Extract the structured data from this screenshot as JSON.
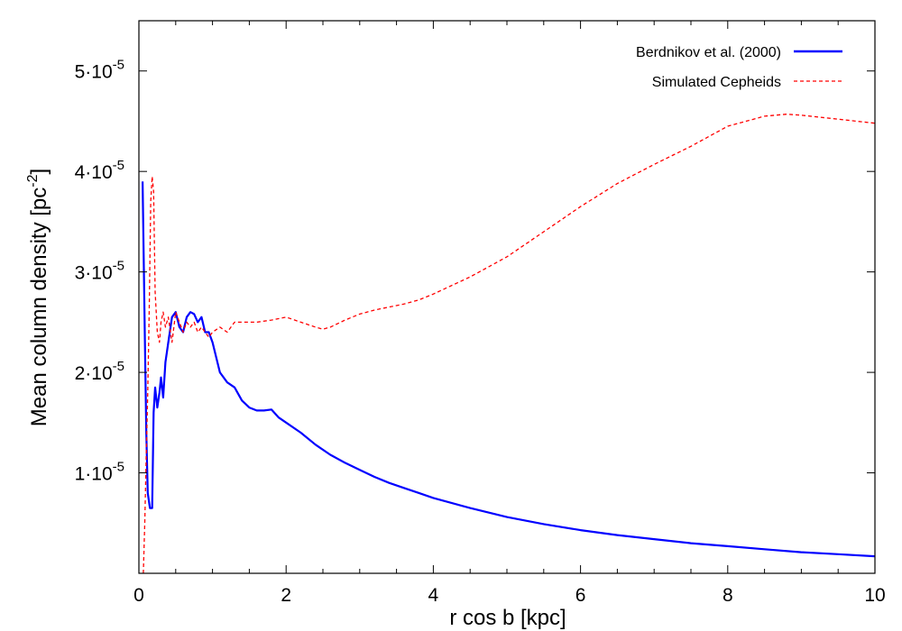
{
  "chart_data": {
    "type": "line",
    "xlabel": "r cos b [kpc]",
    "ylabel_main": "Mean column density [pc",
    "ylabel_sup": "-2",
    "ylabel_end": "]",
    "xlim": [
      0,
      10
    ],
    "ylim": [
      0,
      5.5e-05
    ],
    "grid": false,
    "legend_position": "top-right",
    "x_ticks": [
      {
        "value": 0,
        "label": "0"
      },
      {
        "value": 2,
        "label": "2"
      },
      {
        "value": 4,
        "label": "4"
      },
      {
        "value": 6,
        "label": "6"
      },
      {
        "value": 8,
        "label": "8"
      },
      {
        "value": 10,
        "label": "10"
      }
    ],
    "y_ticks": [
      {
        "value": 1e-05,
        "mant": "1·10",
        "exp": "-5"
      },
      {
        "value": 2e-05,
        "mant": "2·10",
        "exp": "-5"
      },
      {
        "value": 3e-05,
        "mant": "3·10",
        "exp": "-5"
      },
      {
        "value": 4e-05,
        "mant": "4·10",
        "exp": "-5"
      },
      {
        "value": 5e-05,
        "mant": "5·10",
        "exp": "-5"
      }
    ],
    "series": [
      {
        "name": "Berdnikov et al. (2000)",
        "color": "#0000ff",
        "style": "solid",
        "x": [
          0.05,
          0.08,
          0.1,
          0.12,
          0.15,
          0.18,
          0.2,
          0.22,
          0.25,
          0.28,
          0.3,
          0.33,
          0.36,
          0.4,
          0.45,
          0.5,
          0.55,
          0.6,
          0.65,
          0.7,
          0.75,
          0.8,
          0.85,
          0.9,
          0.95,
          1.0,
          1.1,
          1.2,
          1.3,
          1.4,
          1.5,
          1.6,
          1.7,
          1.8,
          1.9,
          2.0,
          2.2,
          2.4,
          2.6,
          2.8,
          3.0,
          3.2,
          3.4,
          3.6,
          3.8,
          4.0,
          4.5,
          5.0,
          5.5,
          6.0,
          6.5,
          7.0,
          7.5,
          8.0,
          8.5,
          9.0,
          9.5,
          10.0
        ],
        "y": [
          3.9e-05,
          2.4e-05,
          1.4e-05,
          8e-06,
          6.5e-06,
          6.5e-06,
          1.6e-05,
          1.85e-05,
          1.65e-05,
          1.8e-05,
          1.95e-05,
          1.75e-05,
          2.1e-05,
          2.3e-05,
          2.55e-05,
          2.6e-05,
          2.45e-05,
          2.4e-05,
          2.55e-05,
          2.6e-05,
          2.58e-05,
          2.5e-05,
          2.55e-05,
          2.4e-05,
          2.4e-05,
          2.3e-05,
          2e-05,
          1.9e-05,
          1.85e-05,
          1.72e-05,
          1.65e-05,
          1.62e-05,
          1.62e-05,
          1.63e-05,
          1.55e-05,
          1.5e-05,
          1.4e-05,
          1.28e-05,
          1.18e-05,
          1.1e-05,
          1.03e-05,
          9.6e-06,
          9e-06,
          8.5e-06,
          8e-06,
          7.5e-06,
          6.5e-06,
          5.6e-06,
          4.9e-06,
          4.3e-06,
          3.8e-06,
          3.4e-06,
          3e-06,
          2.7e-06,
          2.4e-06,
          2.1e-06,
          1.9e-06,
          1.7e-06
        ]
      },
      {
        "name": "Simulated Cepheids",
        "color": "#ff0000",
        "style": "dashed",
        "x": [
          0.06,
          0.08,
          0.1,
          0.12,
          0.14,
          0.16,
          0.18,
          0.2,
          0.22,
          0.25,
          0.28,
          0.3,
          0.33,
          0.36,
          0.4,
          0.45,
          0.5,
          0.55,
          0.6,
          0.65,
          0.7,
          0.75,
          0.8,
          0.85,
          0.9,
          0.95,
          1.0,
          1.1,
          1.2,
          1.3,
          1.4,
          1.6,
          1.8,
          2.0,
          2.2,
          2.4,
          2.5,
          2.6,
          2.8,
          3.0,
          3.2,
          3.4,
          3.6,
          3.8,
          4.0,
          4.5,
          5.0,
          5.5,
          6.0,
          6.5,
          7.0,
          7.5,
          8.0,
          8.5,
          8.8,
          9.0,
          9.5,
          10.0
        ],
        "y": [
          0.0,
          5e-06,
          1.2e-05,
          1.8e-05,
          2.6e-05,
          3.7e-05,
          3.95e-05,
          3.8e-05,
          2.8e-05,
          2.4e-05,
          2.3e-05,
          2.5e-05,
          2.6e-05,
          2.45e-05,
          2.55e-05,
          2.3e-05,
          2.6e-05,
          2.5e-05,
          2.4e-05,
          2.5e-05,
          2.45e-05,
          2.5e-05,
          2.4e-05,
          2.45e-05,
          2.4e-05,
          2.35e-05,
          2.4e-05,
          2.45e-05,
          2.4e-05,
          2.5e-05,
          2.5e-05,
          2.5e-05,
          2.52e-05,
          2.55e-05,
          2.5e-05,
          2.45e-05,
          2.43e-05,
          2.45e-05,
          2.52e-05,
          2.58e-05,
          2.62e-05,
          2.65e-05,
          2.68e-05,
          2.72e-05,
          2.78e-05,
          2.95e-05,
          3.15e-05,
          3.4e-05,
          3.65e-05,
          3.88e-05,
          4.07e-05,
          4.25e-05,
          4.45e-05,
          4.55e-05,
          4.57e-05,
          4.56e-05,
          4.52e-05,
          4.48e-05
        ]
      }
    ]
  }
}
